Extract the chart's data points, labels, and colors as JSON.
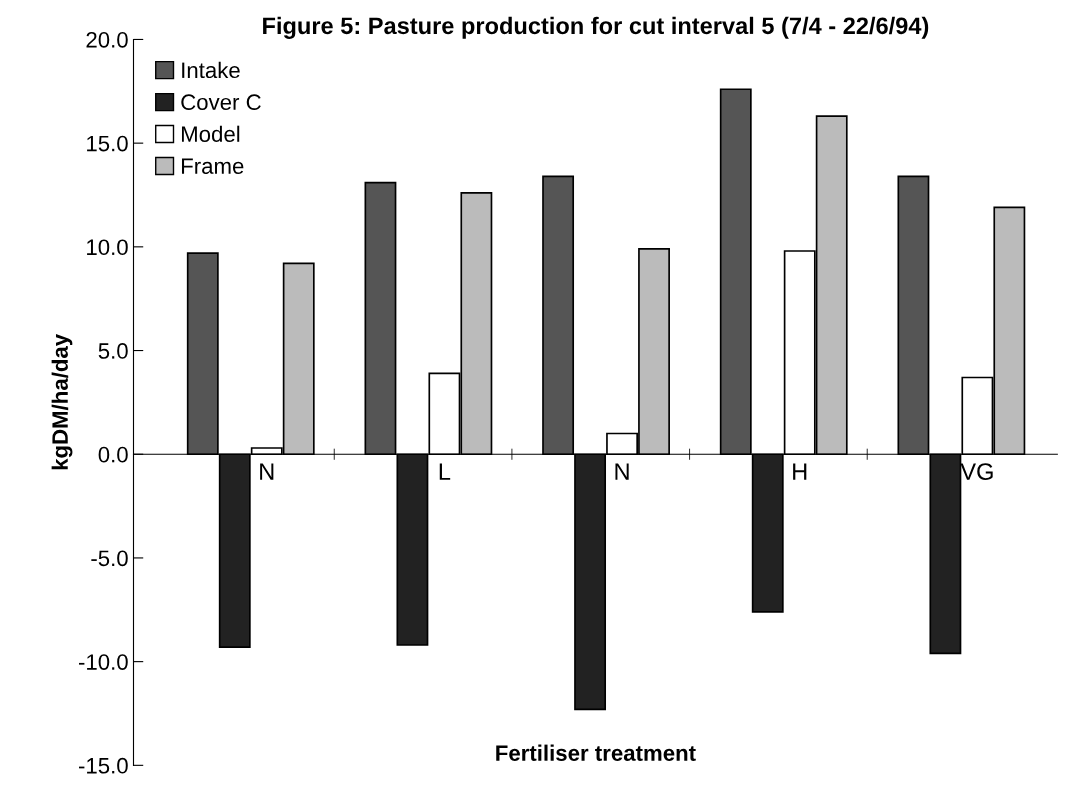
{
  "chart_data": {
    "type": "bar",
    "title": "Figure 5: Pasture production for cut interval 5 (7/4 - 22/6/94)",
    "xlabel": "Fertiliser treatment",
    "ylabel": "kgDM/ha/day",
    "categories": [
      "N",
      "L",
      "N",
      "H",
      "VG"
    ],
    "series": [
      {
        "name": "Intake",
        "color": "#555555",
        "values": [
          9.7,
          13.1,
          13.4,
          17.6,
          13.4
        ]
      },
      {
        "name": "Cover C",
        "color": "#222222",
        "values": [
          -9.3,
          -9.2,
          -12.3,
          -7.6,
          -9.6
        ]
      },
      {
        "name": "Model",
        "color": "#ffffff",
        "values": [
          0.3,
          3.9,
          1.0,
          9.8,
          3.7
        ]
      },
      {
        "name": "Frame",
        "color": "#bbbbbb",
        "values": [
          9.2,
          12.6,
          9.9,
          16.3,
          11.9
        ]
      }
    ],
    "ylim": [
      -15,
      20
    ],
    "yticks": [
      {
        "value": -15,
        "label": "-15.0"
      },
      {
        "value": -10,
        "label": "-10.0"
      },
      {
        "value": -5,
        "label": "-5.0"
      },
      {
        "value": 0,
        "label": "0.0"
      },
      {
        "value": 5,
        "label": "5.0"
      },
      {
        "value": 10,
        "label": "10.0"
      },
      {
        "value": 15,
        "label": "15.0"
      },
      {
        "value": 20,
        "label": "20.0"
      }
    ],
    "grid": false,
    "legend": "top left"
  }
}
